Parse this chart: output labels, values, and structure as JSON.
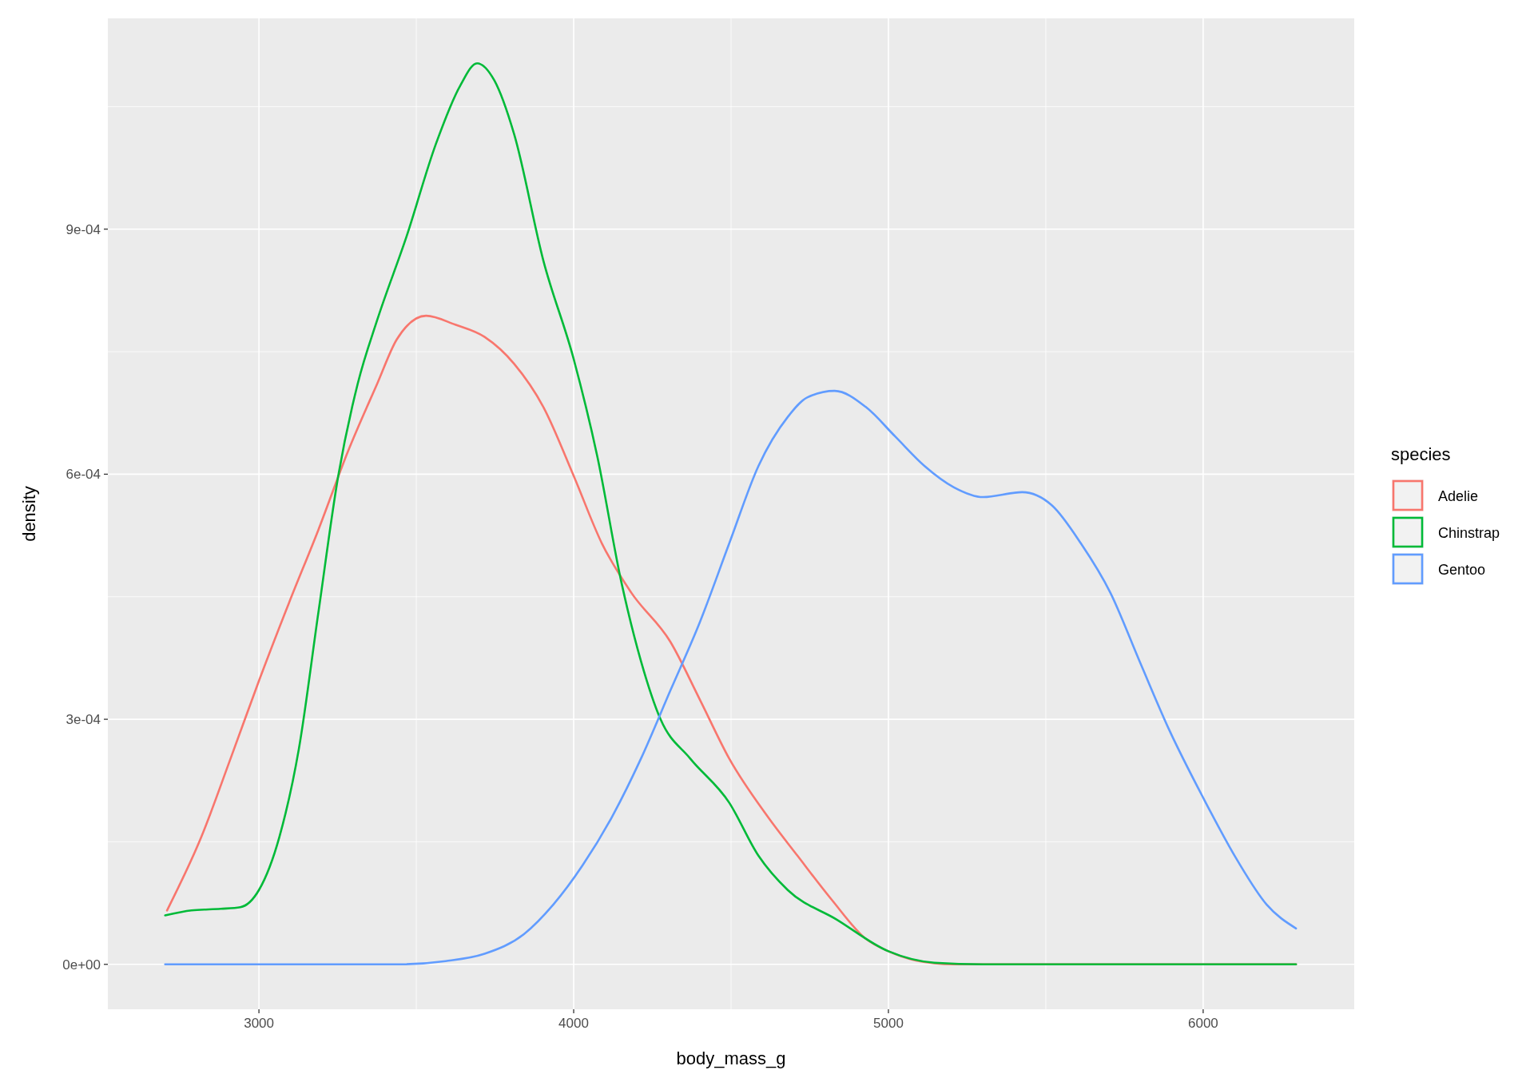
{
  "chart_data": {
    "type": "line",
    "xlabel": "body_mass_g",
    "ylabel": "density",
    "legend_title": "species",
    "legend": "right",
    "grid": true,
    "line_style": "solid",
    "xlim": [
      2520,
      6480
    ],
    "ylim": [
      -5.5e-05,
      0.001158
    ],
    "xticks": [
      3000,
      4000,
      5000,
      6000
    ],
    "yticks": [
      {
        "value": 0,
        "label": "0e+00"
      },
      {
        "value": 0.0003,
        "label": "3e-04"
      },
      {
        "value": 0.0006,
        "label": "6e-04"
      },
      {
        "value": 0.0009,
        "label": "9e-04"
      }
    ],
    "series": [
      {
        "name": "Adelie",
        "color": "#f8766d",
        "x": [
          2708,
          2817,
          2910,
          3000,
          3096,
          3189,
          3283,
          3376,
          3438,
          3531,
          3624,
          3717,
          3811,
          3904,
          4000,
          4090,
          4183,
          4307,
          4401,
          4494,
          4618,
          4711,
          4820,
          4929,
          5000,
          5084,
          5208,
          6295
        ],
        "values": [
          6.6e-05,
          0.000156,
          0.000252,
          0.000347,
          0.000443,
          0.000532,
          0.000628,
          0.000711,
          0.000765,
          0.000794,
          0.000783,
          0.000768,
          0.000735,
          0.000682,
          0.000598,
          0.000515,
          0.000455,
          0.000395,
          0.000324,
          0.000252,
          0.00018,
          0.000133,
          7.9e-05,
          3.1e-05,
          1.6e-05,
          5e-06,
          0,
          0
        ]
      },
      {
        "name": "Chinstrap",
        "color": "#00ba38",
        "x": [
          2702,
          2786,
          2879,
          2941,
          3000,
          3065,
          3127,
          3189,
          3252,
          3314,
          3376,
          3469,
          3562,
          3640,
          3693,
          3748,
          3811,
          3904,
          4000,
          4075,
          4152,
          4214,
          4276,
          4370,
          4494,
          4587,
          4680,
          4835,
          5000,
          5146,
          5301,
          6295
        ],
        "values": [
          6e-05,
          6.6e-05,
          6.8e-05,
          7e-05,
          9.1e-05,
          0.000156,
          0.000264,
          0.000431,
          0.000598,
          0.000711,
          0.000789,
          0.000891,
          0.001004,
          0.001076,
          0.001103,
          0.001082,
          0.001016,
          0.000861,
          0.000741,
          0.000622,
          0.000467,
          0.000371,
          0.0003,
          0.000252,
          0.000198,
          0.000133,
          9.1e-05,
          5.5e-05,
          1.6e-05,
          2e-06,
          0,
          0
        ]
      },
      {
        "name": "Gentoo",
        "color": "#619cff",
        "x": [
          2702,
          3438,
          3593,
          3717,
          3842,
          3935,
          4028,
          4121,
          4214,
          4307,
          4401,
          4494,
          4587,
          4680,
          4742,
          4829,
          4929,
          5022,
          5115,
          5208,
          5301,
          5425,
          5519,
          5612,
          5705,
          5798,
          5891,
          6000,
          6109,
          6202,
          6295
        ],
        "values": [
          0,
          0,
          4e-06,
          1.3e-05,
          3.7e-05,
          7.3e-05,
          0.000121,
          0.00018,
          0.000252,
          0.000335,
          0.000419,
          0.000515,
          0.00061,
          0.00067,
          0.000694,
          0.000702,
          0.000682,
          0.000646,
          0.00061,
          0.000584,
          0.000572,
          0.000578,
          0.000562,
          0.000515,
          0.000455,
          0.000371,
          0.000288,
          0.000204,
          0.000127,
          7.3e-05,
          4.4e-05
        ]
      }
    ]
  }
}
